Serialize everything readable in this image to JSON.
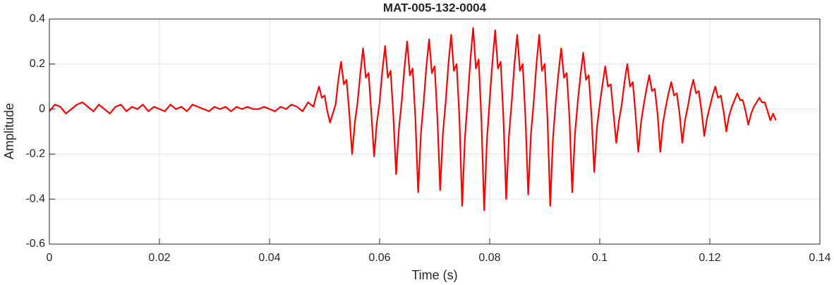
{
  "chart_data": {
    "type": "line",
    "title": "MAT-005-132-0004",
    "x_label": "Time (s)",
    "y_label": "Amplitude",
    "x": [
      0,
      0.001,
      0.002,
      0.003,
      0.004,
      0.005,
      0.006,
      0.007,
      0.008,
      0.009,
      0.01,
      0.011,
      0.012,
      0.013,
      0.014,
      0.015,
      0.016,
      0.017,
      0.018,
      0.019,
      0.02,
      0.021,
      0.022,
      0.023,
      0.024,
      0.025,
      0.026,
      0.027,
      0.028,
      0.029,
      0.03,
      0.031,
      0.032,
      0.033,
      0.034,
      0.035,
      0.036,
      0.037,
      0.038,
      0.039,
      0.04,
      0.041,
      0.042,
      0.043,
      0.044,
      0.045,
      0.046,
      0.047,
      0.048,
      0.0485,
      0.049,
      0.0495,
      0.05,
      0.0505,
      0.051,
      0.0515,
      0.052,
      0.0525,
      0.053,
      0.0535,
      0.054,
      0.0545,
      0.055,
      0.0555,
      0.056,
      0.0565,
      0.057,
      0.0575,
      0.058,
      0.0585,
      0.059,
      0.0595,
      0.06,
      0.0605,
      0.061,
      0.0615,
      0.062,
      0.0625,
      0.063,
      0.0635,
      0.064,
      0.0645,
      0.065,
      0.0655,
      0.066,
      0.0665,
      0.067,
      0.0675,
      0.068,
      0.0685,
      0.069,
      0.0695,
      0.07,
      0.0705,
      0.071,
      0.0715,
      0.072,
      0.0725,
      0.073,
      0.0735,
      0.074,
      0.0745,
      0.075,
      0.0755,
      0.076,
      0.0765,
      0.077,
      0.0775,
      0.078,
      0.0785,
      0.079,
      0.0795,
      0.08,
      0.0805,
      0.081,
      0.0815,
      0.082,
      0.0825,
      0.083,
      0.0835,
      0.084,
      0.0845,
      0.085,
      0.0855,
      0.086,
      0.0865,
      0.087,
      0.0875,
      0.088,
      0.0885,
      0.089,
      0.0895,
      0.09,
      0.0905,
      0.091,
      0.0915,
      0.092,
      0.0925,
      0.093,
      0.0935,
      0.094,
      0.0945,
      0.095,
      0.0955,
      0.096,
      0.0965,
      0.097,
      0.0975,
      0.098,
      0.0985,
      0.099,
      0.0995,
      0.1,
      0.1005,
      0.101,
      0.1015,
      0.102,
      0.1025,
      0.103,
      0.1035,
      0.104,
      0.1045,
      0.105,
      0.1055,
      0.106,
      0.1065,
      0.107,
      0.1075,
      0.108,
      0.1085,
      0.109,
      0.1095,
      0.11,
      0.1105,
      0.111,
      0.1115,
      0.112,
      0.1125,
      0.113,
      0.1135,
      0.114,
      0.1145,
      0.115,
      0.1155,
      0.116,
      0.1165,
      0.117,
      0.1175,
      0.118,
      0.1185,
      0.119,
      0.1195,
      0.12,
      0.1205,
      0.121,
      0.1215,
      0.122,
      0.1225,
      0.123,
      0.1235,
      0.124,
      0.1245,
      0.125,
      0.1255,
      0.126,
      0.1265,
      0.127,
      0.1275,
      0.128,
      0.1285,
      0.129,
      0.1295,
      0.13,
      0.1305,
      0.131,
      0.1315,
      0.132
    ],
    "series": [
      {
        "color": "#ff0000",
        "values": [
          -0.01,
          0.02,
          0.01,
          -0.02,
          0,
          0.02,
          0.03,
          0.01,
          -0.01,
          0.02,
          0,
          -0.02,
          0.01,
          0.02,
          -0.01,
          0.01,
          0,
          0.02,
          -0.01,
          0.01,
          0,
          -0.01,
          0.02,
          0,
          0.01,
          -0.01,
          0.02,
          0.01,
          0,
          -0.01,
          0.01,
          0,
          0.01,
          -0.01,
          0.01,
          0,
          0.01,
          0,
          0,
          0.01,
          0,
          -0.01,
          0.01,
          0,
          0.02,
          0.01,
          -0.01,
          0.03,
          0.01,
          0.06,
          0.1,
          0.05,
          0.06,
          -0.01,
          -0.06,
          -0.02,
          0.02,
          0.13,
          0.21,
          0.11,
          0.13,
          -0.02,
          -0.2,
          -0.06,
          0.03,
          0.16,
          0.27,
          0.14,
          0.16,
          -0.02,
          -0.21,
          -0.06,
          0.03,
          0.17,
          0.28,
          0.14,
          0.17,
          -0.03,
          -0.29,
          -0.09,
          0.03,
          0.18,
          0.3,
          0.15,
          0.18,
          -0.04,
          -0.37,
          -0.11,
          0.03,
          0.19,
          0.31,
          0.16,
          0.19,
          -0.04,
          -0.36,
          -0.11,
          0.03,
          0.2,
          0.33,
          0.17,
          0.2,
          -0.04,
          -0.43,
          -0.13,
          0.04,
          0.22,
          0.36,
          0.18,
          0.22,
          -0.05,
          -0.45,
          -0.14,
          0.04,
          0.21,
          0.35,
          0.18,
          0.21,
          -0.04,
          -0.4,
          -0.12,
          0.03,
          0.2,
          0.33,
          0.17,
          0.2,
          -0.04,
          -0.38,
          -0.11,
          0.03,
          0.2,
          0.33,
          0.17,
          0.2,
          -0.04,
          -0.43,
          -0.13,
          0.03,
          0.16,
          0.27,
          0.14,
          0.16,
          -0.04,
          -0.37,
          -0.11,
          0.03,
          0.15,
          0.25,
          0.13,
          0.15,
          -0.03,
          -0.28,
          -0.08,
          0.02,
          0.11,
          0.19,
          0.1,
          0.11,
          -0.02,
          -0.15,
          -0.05,
          0.02,
          0.12,
          0.2,
          0.1,
          0.12,
          -0.02,
          -0.19,
          -0.06,
          0.02,
          0.09,
          0.15,
          0.08,
          0.09,
          -0.02,
          -0.19,
          -0.06,
          0.01,
          0.07,
          0.12,
          0.06,
          0.07,
          -0.02,
          -0.15,
          -0.05,
          0.01,
          0.08,
          0.13,
          0.07,
          0.08,
          -0.01,
          -0.12,
          -0.04,
          0.01,
          0.06,
          0.1,
          0.05,
          0.06,
          -0.01,
          -0.1,
          -0.03,
          0.01,
          0.04,
          0.07,
          0.04,
          0.04,
          -0.01,
          -0.07,
          -0.02,
          0.01,
          0.03,
          0.05,
          0.03,
          0.03,
          -0.01,
          -0.05,
          -0.02,
          -0.05
        ]
      }
    ],
    "xlim": [
      0,
      0.14
    ],
    "xticks": [
      0,
      0.02,
      0.04,
      0.06,
      0.08,
      0.1,
      0.12,
      0.14
    ],
    "ylim": [
      -0.6,
      0.4
    ],
    "yticks": [
      -0.6,
      -0.4,
      -0.2,
      0,
      0.2,
      0.4
    ],
    "grid": true
  }
}
